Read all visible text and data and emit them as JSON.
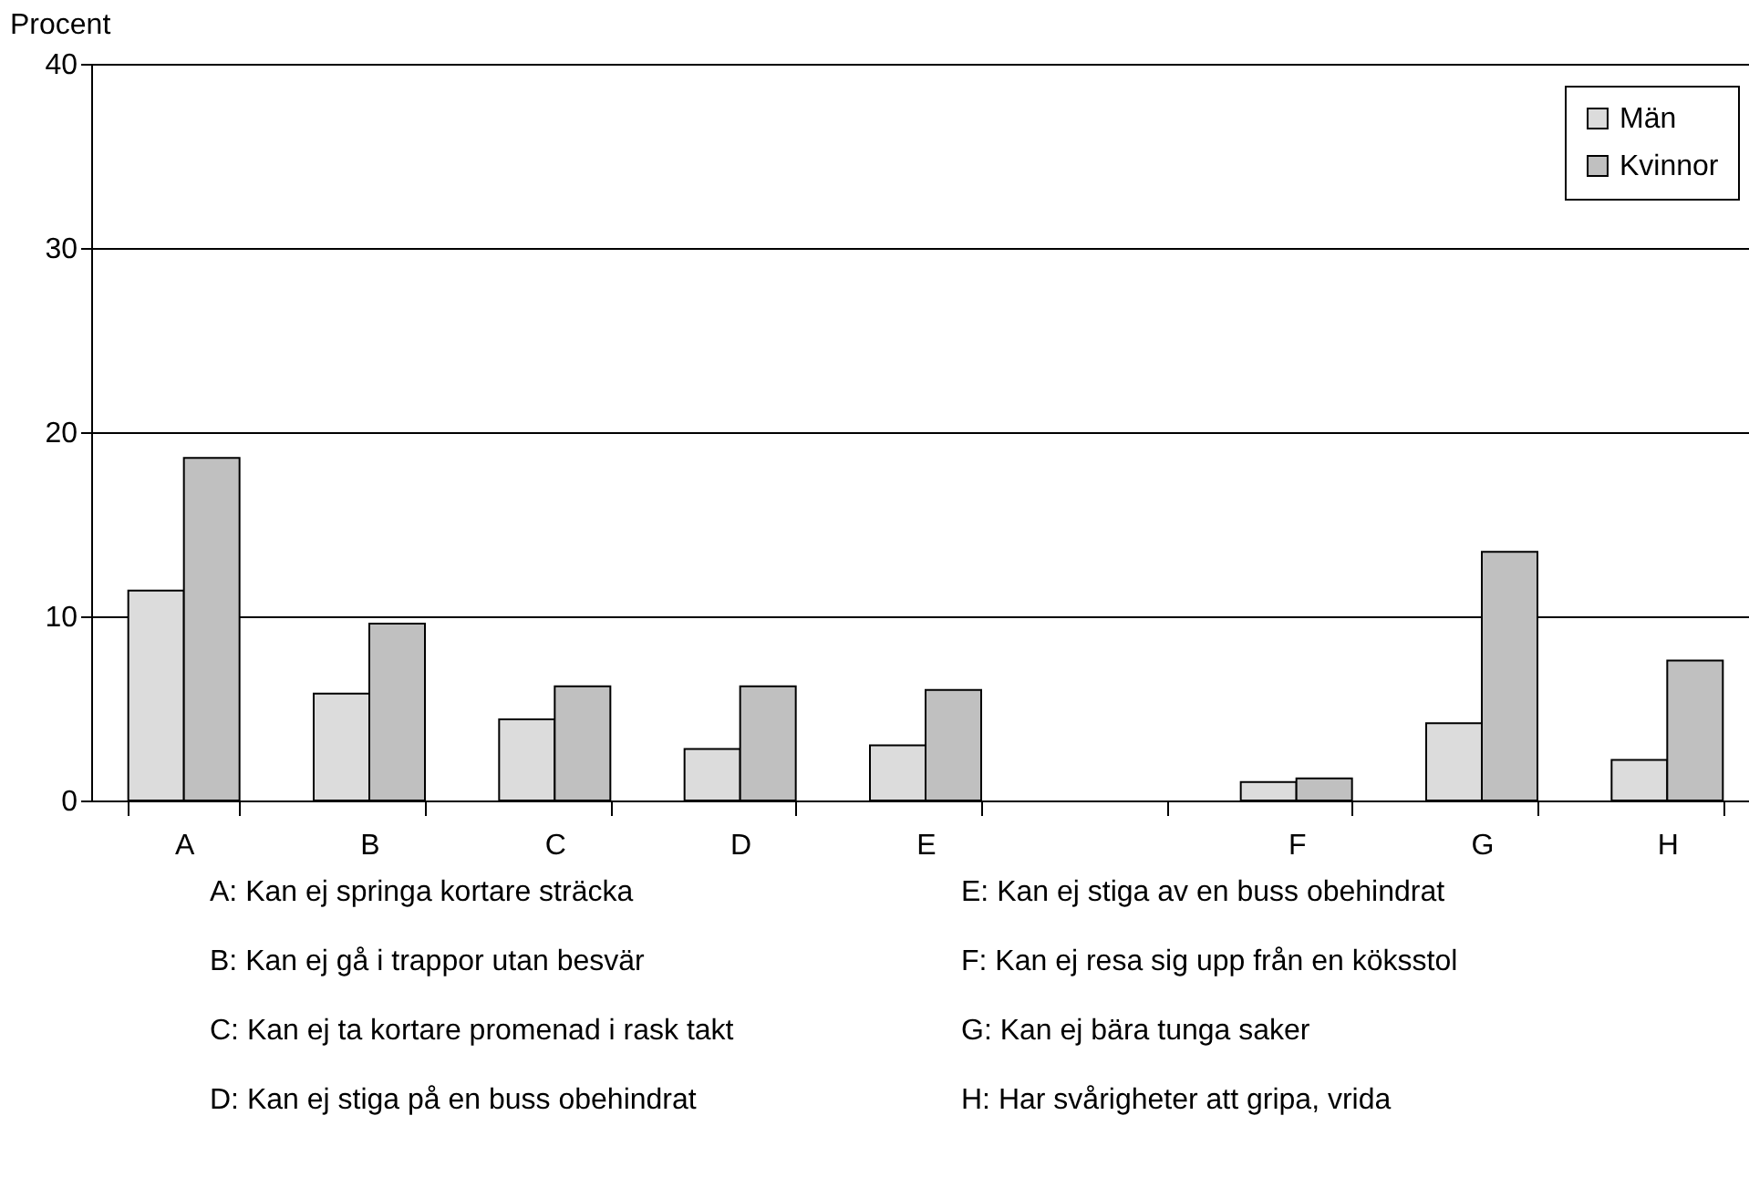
{
  "chart_data": {
    "type": "bar",
    "ylabel": "Procent",
    "categories": [
      "A",
      "B",
      "C",
      "D",
      "E",
      null,
      "F",
      "G",
      "H"
    ],
    "series": [
      {
        "name": "Män",
        "color": "#dcdcdc",
        "values": [
          11.4,
          5.8,
          4.4,
          2.8,
          3.0,
          null,
          1.0,
          4.2,
          2.2
        ]
      },
      {
        "name": "Kvinnor",
        "color": "#c0c0c0",
        "values": [
          18.6,
          9.6,
          6.2,
          6.2,
          6.0,
          null,
          1.2,
          13.5,
          7.6
        ]
      }
    ],
    "ylim": [
      0,
      40
    ],
    "yticks": [
      0,
      10,
      20,
      30,
      40
    ],
    "grid": "y",
    "legend": "top right",
    "annotations": [
      "A: Kan ej springa kortare sträcka",
      "B: Kan ej gå i trappor utan besvär",
      "C: Kan ej ta kortare promenad i rask takt",
      "D: Kan ej stiga på en buss obehindrat",
      "E: Kan ej stiga av en buss obehindrat",
      "F: Kan ej resa sig upp från en köksstol",
      "G: Kan ej bära tunga saker",
      "H: Har svårigheter att gripa, vrida"
    ]
  }
}
